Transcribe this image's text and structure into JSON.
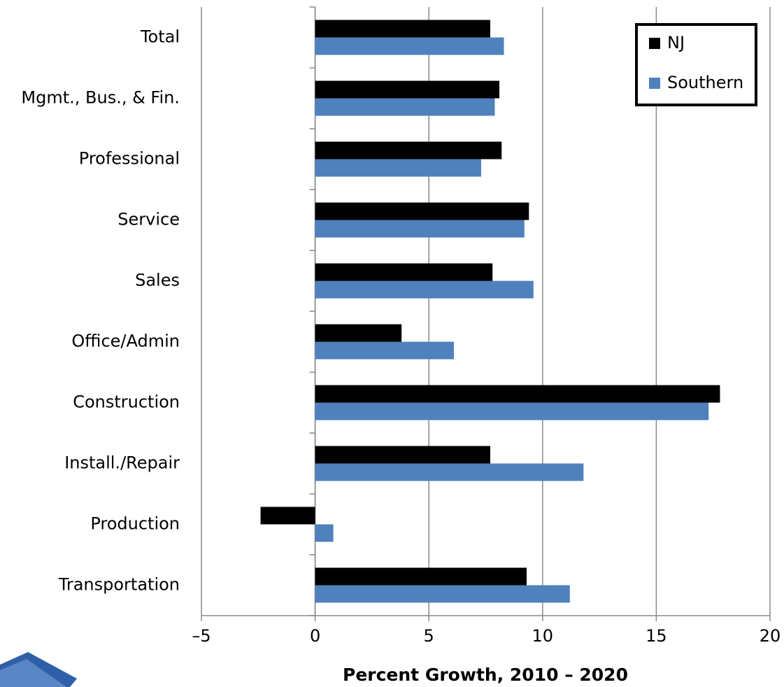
{
  "chart_data": {
    "type": "hbar",
    "xlabel": "Percent Growth, 2010 – 2020",
    "categories": [
      "Total",
      "Mgmt., Bus., & Fin.",
      "Professional",
      "Service",
      "Sales",
      "Office/Admin",
      "Construction",
      "Install./Repair",
      "Production",
      "Transportation"
    ],
    "series": [
      {
        "name": "NJ",
        "color": "#000000",
        "values": [
          7.7,
          8.1,
          8.2,
          9.4,
          7.8,
          3.8,
          17.8,
          7.7,
          -2.4,
          9.3
        ]
      },
      {
        "name": "Southern",
        "color": "#4f81bd",
        "values": [
          8.3,
          7.9,
          7.3,
          9.2,
          9.6,
          6.1,
          17.3,
          11.8,
          0.8,
          11.2
        ]
      }
    ],
    "xlim": [
      -5,
      20
    ],
    "xticks": [
      {
        "value": -5,
        "label": "–5"
      },
      0,
      5,
      10,
      15,
      20
    ],
    "grid": true,
    "legend": "top-right"
  }
}
